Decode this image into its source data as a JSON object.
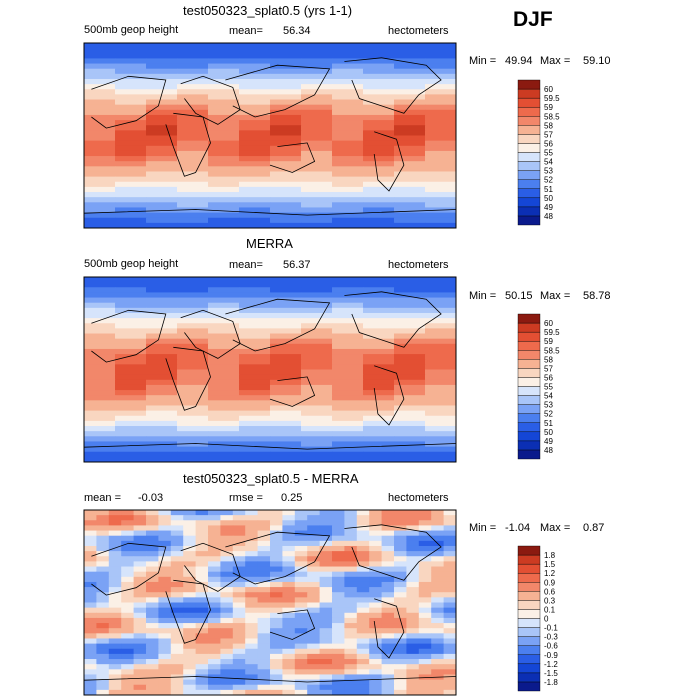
{
  "season": "DJF",
  "colors": {
    "abs_scale": [
      "#0a1a8c",
      "#0b2fb4",
      "#1446d6",
      "#2a5ee6",
      "#4b7fef",
      "#7aa2f5",
      "#a9c5f8",
      "#d6e4fb",
      "#fbf0e6",
      "#f9d6c0",
      "#f6b293",
      "#f2876a",
      "#ee6a4c",
      "#e34f33",
      "#cc3b22",
      "#8b1a10"
    ],
    "diff_scale": [
      "#0a1a8c",
      "#0b2fb4",
      "#1446d6",
      "#2a5ee6",
      "#4b7fef",
      "#7aa2f5",
      "#a9c5f8",
      "#d6e4fb",
      "#fbf0e6",
      "#f9d6c0",
      "#f6b293",
      "#f2876a",
      "#ee6a4c",
      "#e34f33",
      "#cc3b22",
      "#8b1a10"
    ]
  },
  "chart_data": [
    {
      "type": "heatmap",
      "title": "test050323_splat0.5 (yrs 1-1)",
      "left_label": "500mb geop height",
      "mean_label": "mean=",
      "mean_value": "56.34",
      "units": "hectometers",
      "min_label": "Min =",
      "min_value": "49.94",
      "max_label": "Max =",
      "max_value": "59.10",
      "zonal_profile": [
        49.9,
        50.5,
        51.8,
        53.5,
        55.2,
        56.8,
        58.0,
        58.7,
        59.0,
        58.9,
        58.6,
        58.1,
        57.2,
        55.8,
        54.2,
        52.6,
        51.2,
        50.4
      ],
      "colorbar_labels": [
        "60",
        "59.5",
        "59",
        "58.5",
        "58",
        "57",
        "56",
        "55",
        "54",
        "53",
        "52",
        "51",
        "50",
        "49",
        "48"
      ]
    },
    {
      "type": "heatmap",
      "title": "MERRA",
      "left_label": "500mb geop height",
      "mean_label": "mean=",
      "mean_value": "56.37",
      "units": "hectometers",
      "min_label": "Min =",
      "min_value": "50.15",
      "max_label": "Max =",
      "max_value": "58.78",
      "zonal_profile": [
        50.2,
        50.8,
        52.0,
        53.6,
        55.3,
        56.9,
        58.0,
        58.6,
        58.8,
        58.8,
        58.5,
        58.0,
        57.1,
        55.7,
        54.0,
        52.4,
        51.0,
        50.3
      ],
      "colorbar_labels": [
        "60",
        "59.5",
        "59",
        "58.5",
        "58",
        "57",
        "56",
        "55",
        "54",
        "53",
        "52",
        "51",
        "50",
        "49",
        "48"
      ]
    },
    {
      "type": "heatmap",
      "title": "test050323_splat0.5 - MERRA",
      "left_label": "mean =",
      "left_value": "-0.03",
      "mid_label": "rmse =",
      "mid_value": "0.25",
      "units": "hectometers",
      "min_label": "Min =",
      "min_value": "-1.04",
      "max_label": "Max =",
      "max_value": "0.87",
      "colorbar_labels": [
        "1.8",
        "1.5",
        "1.2",
        "0.9",
        "0.6",
        "0.3",
        "0.1",
        "0",
        "-0.1",
        "-0.3",
        "-0.6",
        "-0.9",
        "-1.2",
        "-1.5",
        "-1.8"
      ]
    }
  ]
}
